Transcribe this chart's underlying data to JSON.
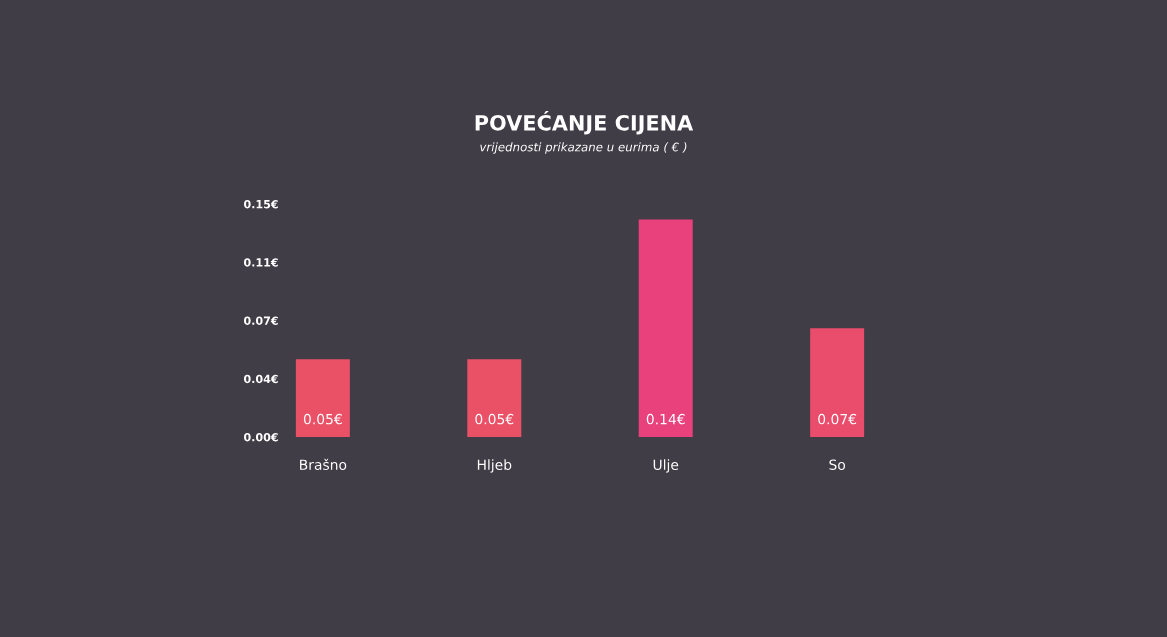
{
  "chart_data": {
    "type": "bar",
    "title": "POVEĆANJE CIJENA",
    "subtitle": "vrijednosti prikazane u eurima ( € )",
    "categories": [
      "Brašno",
      "Hljeb",
      "Ulje",
      "So"
    ],
    "values": [
      0.05,
      0.05,
      0.14,
      0.07
    ],
    "value_labels": [
      "0.05€",
      "0.05€",
      "0.14€",
      "0.07€"
    ],
    "colors": [
      "#ea5066",
      "#ea5066",
      "#e9417c",
      "#ea4c6c"
    ],
    "ylim": [
      0,
      0.15
    ],
    "yticks": [
      {
        "value": 0,
        "label": "0.00€"
      },
      {
        "value": 0.0375,
        "label": "0.04€"
      },
      {
        "value": 0.075,
        "label": "0.07€"
      },
      {
        "value": 0.1125,
        "label": "0.11€"
      },
      {
        "value": 0.15,
        "label": "0.15€"
      }
    ],
    "grid": false,
    "legend": false
  }
}
